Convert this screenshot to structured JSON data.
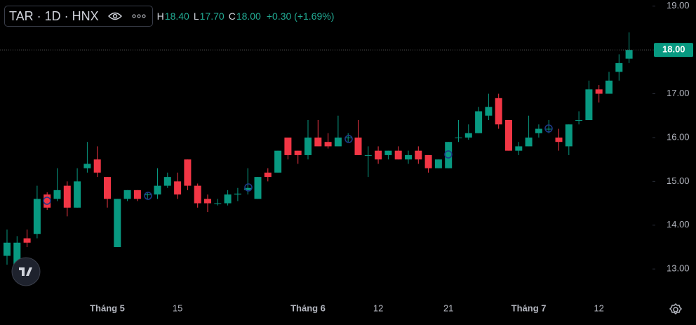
{
  "legend": {
    "symbol": "TAR · 1D · HNX",
    "high_label": "H",
    "high": "18.40",
    "low_label": "L",
    "low": "17.70",
    "close_label": "C",
    "close": "18.00",
    "change": "+0.30 (+1.69%)"
  },
  "chart_data": {
    "type": "candlestick",
    "categories": [
      null,
      null,
      null,
      null,
      null,
      null,
      null,
      null,
      null,
      null,
      "Tháng 5",
      null,
      null,
      null,
      null,
      null,
      null,
      "15",
      null,
      null,
      null,
      null,
      null,
      null,
      null,
      null,
      null,
      null,
      null,
      null,
      "Tháng 6",
      null,
      null,
      null,
      null,
      null,
      null,
      "12",
      null,
      null,
      null,
      null,
      null,
      null,
      "21",
      null,
      null,
      null,
      null,
      null,
      null,
      null,
      "Tháng 7",
      null,
      null,
      null,
      null,
      null,
      null,
      "12",
      null,
      null,
      null
    ],
    "open": [
      13.3,
      12.9,
      13.7,
      13.8,
      14.7,
      14.6,
      14.9,
      14.4,
      15.3,
      15.5,
      15.1,
      13.5,
      14.6,
      14.8,
      14.7,
      14.7,
      14.9,
      15.0,
      15.5,
      14.9,
      14.6,
      14.5,
      14.5,
      14.7,
      14.8,
      14.6,
      15.2,
      15.2,
      16.0,
      15.7,
      15.6,
      16.0,
      15.9,
      15.8,
      16.0,
      16.0,
      15.6,
      15.7,
      15.6,
      15.7,
      15.5,
      15.7,
      15.6,
      15.3,
      15.3,
      16.0,
      16.0,
      16.1,
      16.5,
      16.9,
      16.4,
      15.7,
      15.8,
      16.1,
      16.2,
      16.0,
      15.8,
      16.4,
      16.4,
      17.1,
      17.0,
      17.5,
      17.8
    ],
    "high": [
      13.9,
      13.75,
      13.9,
      14.9,
      14.75,
      15.3,
      15.0,
      15.3,
      15.9,
      15.8,
      15.1,
      14.6,
      14.8,
      14.8,
      14.75,
      15.3,
      15.2,
      15.2,
      15.5,
      14.95,
      14.7,
      14.6,
      14.8,
      14.85,
      15.3,
      15.1,
      15.3,
      15.7,
      16.0,
      15.7,
      16.4,
      16.4,
      16.1,
      16.5,
      16.1,
      16.4,
      15.8,
      15.8,
      15.7,
      15.8,
      15.7,
      15.8,
      15.6,
      15.5,
      15.9,
      16.4,
      16.3,
      16.7,
      17.0,
      17.0,
      16.4,
      15.9,
      16.5,
      16.3,
      16.4,
      16.2,
      16.3,
      16.6,
      17.3,
      17.2,
      17.5,
      17.9,
      18.4
    ],
    "low": [
      13.1,
      12.85,
      13.5,
      13.7,
      14.35,
      14.55,
      14.2,
      14.4,
      15.2,
      15.1,
      14.4,
      13.5,
      14.55,
      14.55,
      14.6,
      14.6,
      14.85,
      14.6,
      14.8,
      14.4,
      14.3,
      14.45,
      14.45,
      14.55,
      14.7,
      14.6,
      15.0,
      15.2,
      15.5,
      15.4,
      15.5,
      15.8,
      15.75,
      15.8,
      15.9,
      15.6,
      15.1,
      15.4,
      15.5,
      15.5,
      15.4,
      15.4,
      15.2,
      15.3,
      15.3,
      15.9,
      15.95,
      16.1,
      16.4,
      16.2,
      15.7,
      15.6,
      15.8,
      16.0,
      16.1,
      15.7,
      15.6,
      16.3,
      16.4,
      16.8,
      17.0,
      17.3,
      17.7
    ],
    "close": [
      13.6,
      13.6,
      13.6,
      14.6,
      14.4,
      14.8,
      14.4,
      15.0,
      15.4,
      15.2,
      14.6,
      14.6,
      14.8,
      14.6,
      14.7,
      14.9,
      15.1,
      14.7,
      14.9,
      14.5,
      14.5,
      14.5,
      14.7,
      14.72,
      14.85,
      15.1,
      15.1,
      15.7,
      15.6,
      15.6,
      16.0,
      15.8,
      15.8,
      16.0,
      16.0,
      15.6,
      15.6,
      15.5,
      15.7,
      15.5,
      15.6,
      15.5,
      15.3,
      15.5,
      15.9,
      16.0,
      16.1,
      16.6,
      16.7,
      16.3,
      15.7,
      15.8,
      16.0,
      16.2,
      16.2,
      15.9,
      16.3,
      16.4,
      17.1,
      17.0,
      17.3,
      17.7,
      18.0
    ],
    "up_color": "#089981",
    "down_color": "#f23645",
    "ylim": [
      12.41,
      19.14
    ],
    "yticks": [
      {
        "value": 13,
        "label": "13.00"
      },
      {
        "value": 14,
        "label": "14.00"
      },
      {
        "value": 15,
        "label": "15.00"
      },
      {
        "value": 16,
        "label": "16.00"
      },
      {
        "value": 17,
        "label": "17.00"
      },
      {
        "value": 18,
        "label": "18.00"
      },
      {
        "value": 19,
        "label": "19.00"
      }
    ],
    "last_price": {
      "value": 18,
      "label": "18.00"
    }
  }
}
